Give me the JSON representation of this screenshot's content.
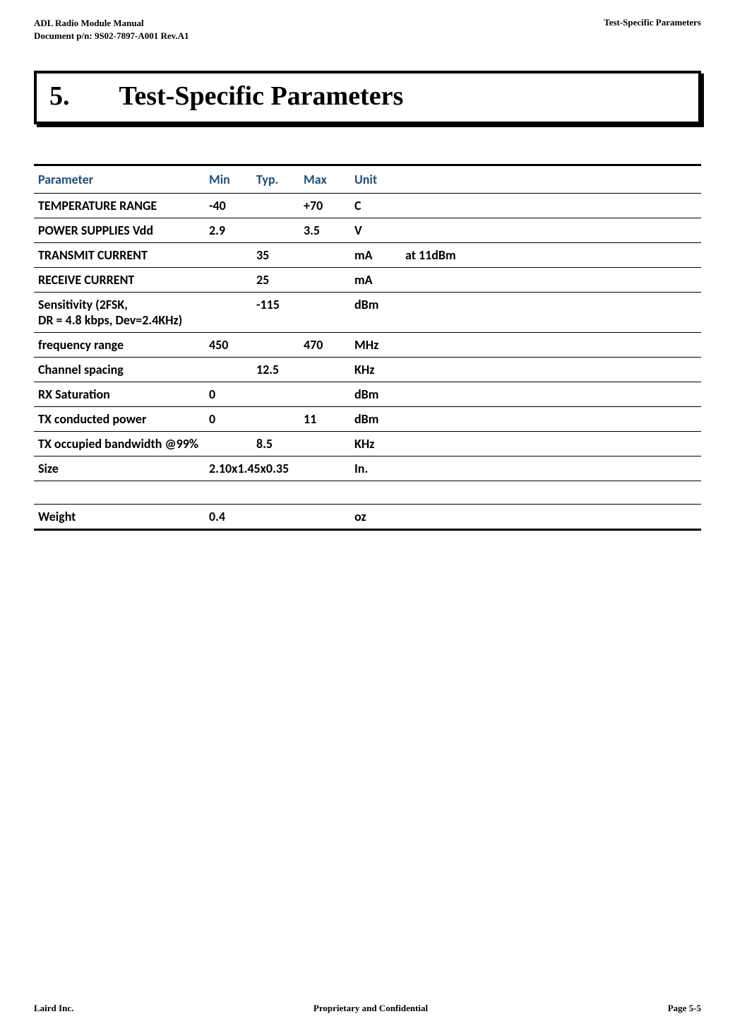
{
  "header": {
    "left_line1": "ADL Radio Module Manual",
    "left_line2": "Document p/n: 9S02-7897-A001 Rev.A1",
    "right": "Test-Specific Parameters"
  },
  "section": {
    "number": "5.",
    "title": "Test-Specific Parameters"
  },
  "table": {
    "headers": {
      "param": "Parameter",
      "min": "Min",
      "typ": "Typ.",
      "max": "Max",
      "unit": "Unit"
    },
    "rows": [
      {
        "param": "TEMPERATURE RANGE",
        "min": "-40",
        "typ": "",
        "max": "+70",
        "unit": "C",
        "note": ""
      },
      {
        "param": "POWER SUPPLIES Vdd",
        "min": "2.9",
        "typ": "",
        "max": "3.5",
        "unit": "V",
        "note": ""
      },
      {
        "param": "TRANSMIT CURRENT",
        "min": "",
        "typ": "35",
        "max": "",
        "unit": "mA",
        "note": "at 11dBm"
      },
      {
        "param": "RECEIVE CURRENT",
        "min": "",
        "typ": "25",
        "max": "",
        "unit": "mA",
        "note": ""
      },
      {
        "param": "Sensitivity (2FSK,",
        "sub": "DR = 4.8 kbps, Dev=2.4KHz)",
        "min": "",
        "typ": "-115",
        "max": "",
        "unit": "dBm",
        "note": ""
      },
      {
        "param": "frequency range",
        "min": "450",
        "typ": "",
        "max": "470",
        "unit": "MHz",
        "note": ""
      },
      {
        "param": "Channel spacing",
        "min": "",
        "typ": "12.5",
        "max": "",
        "unit": "KHz",
        "note": ""
      },
      {
        "param": "RX Saturation",
        "min": "0",
        "typ": "",
        "max": "",
        "unit": "dBm",
        "note": ""
      },
      {
        "param": "TX conducted power",
        "min": "0",
        "typ": "",
        "max": "11",
        "unit": "dBm",
        "note": ""
      },
      {
        "param": "TX occupied bandwidth @99%",
        "min": "",
        "typ": "8.5",
        "max": "",
        "unit": "KHz",
        "note": ""
      },
      {
        "param": "Size",
        "min": "2.10x1.45x0.35",
        "typ": "",
        "max": "",
        "unit": "In.",
        "note": "",
        "wide": true
      },
      {
        "blank": true
      },
      {
        "param": "Weight",
        "min": "0.4",
        "typ": "",
        "max": "",
        "unit": "oz",
        "note": ""
      }
    ]
  },
  "footer": {
    "left": "Laird Inc.",
    "center": "Proprietary and Confidential",
    "right": "Page  5-5"
  }
}
